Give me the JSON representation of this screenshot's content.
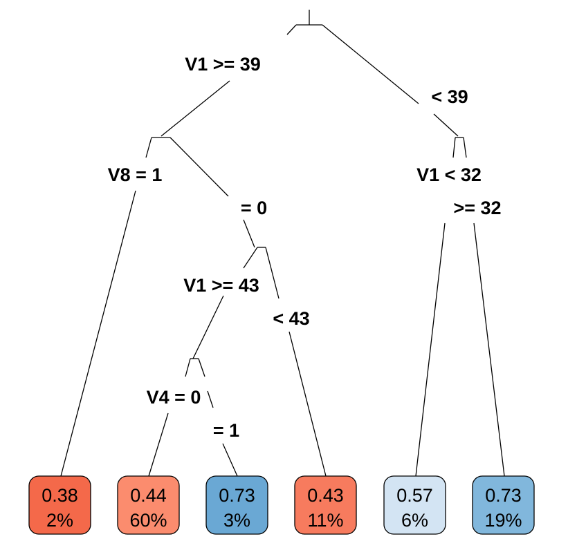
{
  "tree": {
    "root": {
      "label_left": "V1 >= 39",
      "label_right": "< 39"
    },
    "node_v8": {
      "label_left": "V8 = 1",
      "label_right": "= 0"
    },
    "node_v1_32": {
      "label_left": "V1 < 32",
      "label_right": ">= 32"
    },
    "node_v1_43": {
      "label_left": "V1 >= 43",
      "label_right": "< 43"
    },
    "node_v4": {
      "label_left": "V4 = 0",
      "label_right": "= 1"
    },
    "leaves": [
      {
        "value": "0.38",
        "percent": "2%",
        "color": "#f4694a"
      },
      {
        "value": "0.44",
        "percent": "60%",
        "color": "#fb8c6e"
      },
      {
        "value": "0.73",
        "percent": "3%",
        "color": "#6aa8d4"
      },
      {
        "value": "0.43",
        "percent": "11%",
        "color": "#f77b5e"
      },
      {
        "value": "0.57",
        "percent": "6%",
        "color": "#d3e4f3"
      },
      {
        "value": "0.73",
        "percent": "19%",
        "color": "#81b7dc"
      }
    ]
  }
}
